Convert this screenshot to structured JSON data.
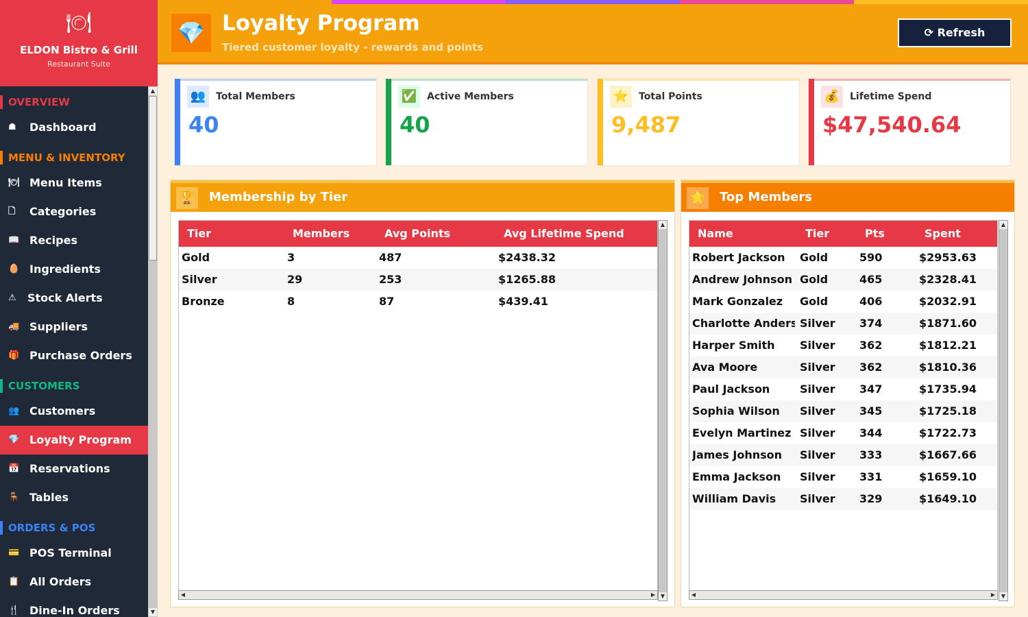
{
  "brand": {
    "logo": "🍽",
    "name": "ELDON Bistro & Grill",
    "subtitle": "Restaurant Suite"
  },
  "sidebar": {
    "sections": [
      {
        "label": "OVERVIEW",
        "color": "#e63946"
      },
      {
        "label": "MENU & INVENTORY",
        "color": "#f77f00"
      },
      {
        "label": "CUSTOMERS",
        "color": "#10b981"
      },
      {
        "label": "ORDERS & POS",
        "color": "#3b82f6"
      }
    ],
    "items": [
      {
        "icon": "☗",
        "label": "Dashboard"
      },
      {
        "icon": "🍽",
        "label": "Menu Items"
      },
      {
        "icon": "🗋",
        "label": "Categories"
      },
      {
        "icon": "📖",
        "label": "Recipes"
      },
      {
        "icon": "🥚",
        "label": "Ingredients"
      },
      {
        "icon": "⚠",
        "label": "Stock Alerts"
      },
      {
        "icon": "🚚",
        "label": "Suppliers"
      },
      {
        "icon": "🎁",
        "label": "Purchase Orders"
      },
      {
        "icon": "👥",
        "label": "Customers"
      },
      {
        "icon": "💎",
        "label": "Loyalty Program"
      },
      {
        "icon": "📅",
        "label": "Reservations"
      },
      {
        "icon": "🪑",
        "label": "Tables"
      },
      {
        "icon": "💳",
        "label": "POS Terminal"
      },
      {
        "icon": "📋",
        "label": "All Orders"
      },
      {
        "icon": "🍴",
        "label": "Dine-In Orders"
      }
    ]
  },
  "header": {
    "icon": "💎",
    "title": "Loyalty Program",
    "subtitle": "Tiered customer loyalty - rewards and points",
    "refresh_label": "⟳ Refresh"
  },
  "stats": [
    {
      "icon": "👥",
      "label": "Total Members",
      "value": "40",
      "color": "#3b82f6"
    },
    {
      "icon": "✅",
      "label": "Active Members",
      "value": "40",
      "color": "#16a34a"
    },
    {
      "icon": "⭐",
      "label": "Total Points",
      "value": "9,487",
      "color": "#fbbf24"
    },
    {
      "icon": "💰",
      "label": "Lifetime Spend",
      "value": "$47,540.64",
      "color": "#e63946"
    }
  ],
  "tier_panel": {
    "icon": "🏆",
    "title": "Membership by Tier",
    "columns": [
      "Tier",
      "Members",
      "Avg Points",
      "Avg Lifetime Spend"
    ],
    "rows": [
      [
        "Gold",
        "3",
        "487",
        "$2438.32"
      ],
      [
        "Silver",
        "29",
        "253",
        "$1265.88"
      ],
      [
        "Bronze",
        "8",
        "87",
        "$439.41"
      ]
    ]
  },
  "top_panel": {
    "icon": "🌟",
    "title": "Top Members",
    "columns": [
      "Name",
      "Tier",
      "Pts",
      "Spent"
    ],
    "rows": [
      [
        "Robert Jackson",
        "Gold",
        "590",
        "$2953.63"
      ],
      [
        "Andrew Johnson",
        "Gold",
        "465",
        "$2328.41"
      ],
      [
        "Mark Gonzalez",
        "Gold",
        "406",
        "$2032.91"
      ],
      [
        "Charlotte Anderson",
        "Silver",
        "374",
        "$1871.60"
      ],
      [
        "Harper Smith",
        "Silver",
        "362",
        "$1812.21"
      ],
      [
        "Ava Moore",
        "Silver",
        "362",
        "$1810.36"
      ],
      [
        "Paul Jackson",
        "Silver",
        "347",
        "$1735.94"
      ],
      [
        "Sophia Wilson",
        "Silver",
        "345",
        "$1725.18"
      ],
      [
        "Evelyn Martinez",
        "Silver",
        "344",
        "$1722.73"
      ],
      [
        "James Johnson",
        "Silver",
        "333",
        "$1667.66"
      ],
      [
        "Emma Jackson",
        "Silver",
        "331",
        "$1659.10"
      ],
      [
        "William Davis",
        "Silver",
        "329",
        "$1649.10"
      ]
    ]
  }
}
